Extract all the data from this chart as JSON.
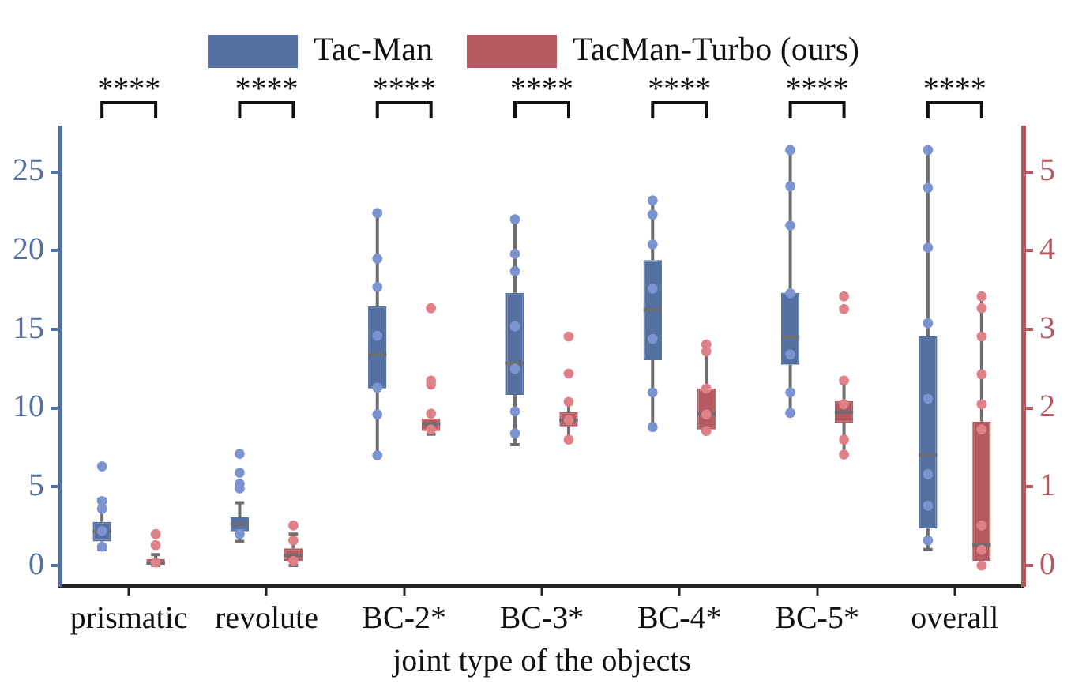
{
  "chart_data": {
    "type": "box",
    "xlabel": "joint type of the objects",
    "categories": [
      "prismatic",
      "revolute",
      "BC-2*",
      "BC-3*",
      "BC-4*",
      "BC-5*",
      "overall"
    ],
    "ylim": [
      -1.3,
      27.8
    ],
    "yticks": [
      0,
      5,
      10,
      15,
      20,
      25
    ],
    "y2lim": [
      -0.26,
      5.56
    ],
    "y2ticks": [
      0,
      1,
      2,
      3,
      4,
      5
    ],
    "grid": false,
    "legend": "top",
    "annotations": [
      "****",
      "****",
      "****",
      "****",
      "****",
      "****",
      "****"
    ],
    "series": [
      {
        "name": "Tac-Man",
        "color": "#5470a3",
        "boxes": [
          {
            "low": 1.02,
            "q1": 1.54,
            "median": 2.17,
            "q3": 2.78,
            "high": 4.22
          },
          {
            "low": 1.54,
            "q1": 2.17,
            "median": 2.65,
            "q3": 3.07,
            "high": 3.99
          },
          {
            "low": 7.03,
            "q1": 11.26,
            "median": 13.4,
            "q3": 16.47,
            "high": 22.4
          },
          {
            "low": 7.68,
            "q1": 10.84,
            "median": 12.86,
            "q3": 17.33,
            "high": 22.0
          },
          {
            "low": 8.79,
            "q1": 13.05,
            "median": 16.25,
            "q3": 19.41,
            "high": 23.19
          },
          {
            "low": 9.69,
            "q1": 12.76,
            "median": 14.52,
            "q3": 17.33,
            "high": 26.39
          },
          {
            "low": 1.02,
            "q1": 2.36,
            "median": 7.03,
            "q3": 14.55,
            "high": 26.39
          }
        ]
      },
      {
        "name": "TacMan-Turbo (ours)",
        "color": "#b55a60",
        "axis": "y2",
        "boxes": [
          {
            "low": 0,
            "q1": 0,
            "median": 0.03,
            "q3": 0.08,
            "high": 0.14
          },
          {
            "low": 0,
            "q1": 0.06,
            "median": 0.13,
            "q3": 0.22,
            "high": 0.4
          },
          {
            "low": 1.67,
            "q1": 1.71,
            "median": 1.8,
            "q3": 1.87,
            "high": 1.94
          },
          {
            "low": 1.59,
            "q1": 1.77,
            "median": 1.85,
            "q3": 1.95,
            "high": 2.09
          },
          {
            "low": 1.73,
            "q1": 1.73,
            "median": 1.93,
            "q3": 2.25,
            "high": 2.81
          },
          {
            "low": 1.41,
            "q1": 1.81,
            "median": 1.95,
            "q3": 2.09,
            "high": 2.35
          },
          {
            "low": 0,
            "q1": 0.06,
            "median": 0.26,
            "q3": 1.83,
            "high": 3.42
          }
        ]
      },
      {
        "type": "scatter",
        "color": "#7b93d0",
        "x": [
          "prismatic",
          "prismatic",
          "prismatic",
          "prismatic",
          "prismatic",
          "revolute",
          "revolute",
          "revolute",
          "revolute",
          "revolute",
          "BC-2*",
          "BC-2*",
          "BC-2*",
          "BC-2*",
          "BC-2*",
          "BC-2*",
          "BC-2*",
          "BC-3*",
          "BC-3*",
          "BC-3*",
          "BC-3*",
          "BC-3*",
          "BC-3*",
          "BC-3*",
          "BC-4*",
          "BC-4*",
          "BC-4*",
          "BC-4*",
          "BC-4*",
          "BC-4*",
          "BC-4*",
          "BC-5*",
          "BC-5*",
          "BC-5*",
          "BC-5*",
          "BC-5*",
          "BC-5*",
          "BC-5*",
          "overall",
          "overall",
          "overall",
          "overall",
          "overall",
          "overall",
          "overall",
          "overall"
        ],
        "values": [
          6.3,
          4.1,
          3.6,
          2.2,
          1.2,
          7.1,
          5.9,
          5.2,
          4.9,
          2.0,
          22.4,
          19.5,
          17.7,
          14.6,
          11.3,
          9.6,
          7.0,
          22.0,
          19.8,
          18.7,
          15.2,
          12.5,
          9.8,
          8.4,
          23.2,
          22.3,
          20.4,
          17.6,
          14.4,
          11.0,
          8.8,
          26.4,
          24.1,
          21.6,
          17.3,
          13.4,
          11.0,
          9.7,
          26.4,
          24.0,
          20.2,
          15.4,
          10.6,
          5.8,
          3.8,
          1.6
        ]
      },
      {
        "type": "scatter",
        "color": "#e08088",
        "axis": "y2",
        "x": [
          "prismatic",
          "prismatic",
          "prismatic",
          "revolute",
          "revolute",
          "revolute",
          "BC-2*",
          "BC-2*",
          "BC-2*",
          "BC-2*",
          "BC-2*",
          "BC-3*",
          "BC-3*",
          "BC-3*",
          "BC-3*",
          "BC-3*",
          "BC-4*",
          "BC-4*",
          "BC-4*",
          "BC-4*",
          "BC-4*",
          "BC-5*",
          "BC-5*",
          "BC-5*",
          "BC-5*",
          "BC-5*",
          "BC-5*",
          "overall",
          "overall",
          "overall",
          "overall",
          "overall",
          "overall",
          "overall",
          "overall",
          "overall"
        ],
        "values": [
          0.4,
          0.26,
          0.04,
          0.51,
          0.32,
          0.06,
          3.27,
          2.35,
          2.3,
          1.93,
          1.73,
          2.91,
          2.44,
          2.08,
          1.85,
          1.6,
          2.81,
          2.72,
          2.25,
          1.92,
          1.71,
          3.42,
          3.26,
          2.35,
          2.05,
          1.6,
          1.41,
          3.42,
          3.27,
          2.91,
          2.43,
          2.05,
          1.73,
          0.51,
          0.2,
          0
        ]
      }
    ]
  }
}
